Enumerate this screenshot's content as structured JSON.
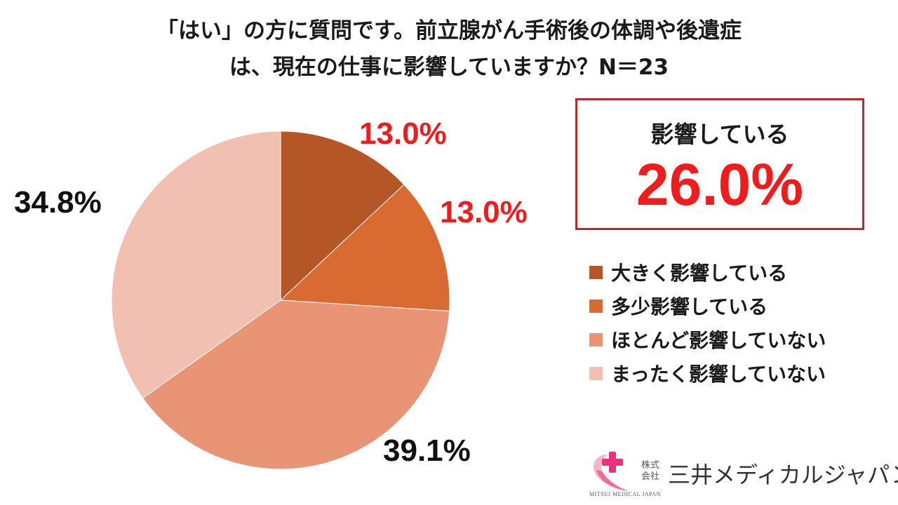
{
  "title": {
    "line1": "「はい」の方に質問です。前立腺がん手術後の体調や後遺症",
    "line2": "は、現在の仕事に影響していますか？N＝23"
  },
  "callout": {
    "label": "影響している",
    "value": "26.0%"
  },
  "logo": {
    "kabu": "株式会社",
    "name": "三井メディカルジャパン",
    "sub": "MITSUI MEDICAL JAPAN"
  },
  "chart_data": {
    "type": "pie",
    "title": "「はい」の方に質問です。前立腺がん手術後の体調や後遺症は、現在の仕事に影響していますか？N＝23",
    "categories": [
      "大きく影響している",
      "多少影響している",
      "ほとんど影響していない",
      "まったく影響していない"
    ],
    "values": [
      13.0,
      13.0,
      39.1,
      34.8
    ],
    "labels": [
      "13.0%",
      "13.0%",
      "39.1%",
      "34.8%"
    ],
    "colors": [
      "#b55626",
      "#d86a32",
      "#e99475",
      "#f2c0b2"
    ],
    "label_colors": [
      "#ee1c1c",
      "#ee1c1c",
      "#111111",
      "#111111"
    ],
    "legend_position": "right",
    "start_angle": "top",
    "direction": "clockwise"
  }
}
